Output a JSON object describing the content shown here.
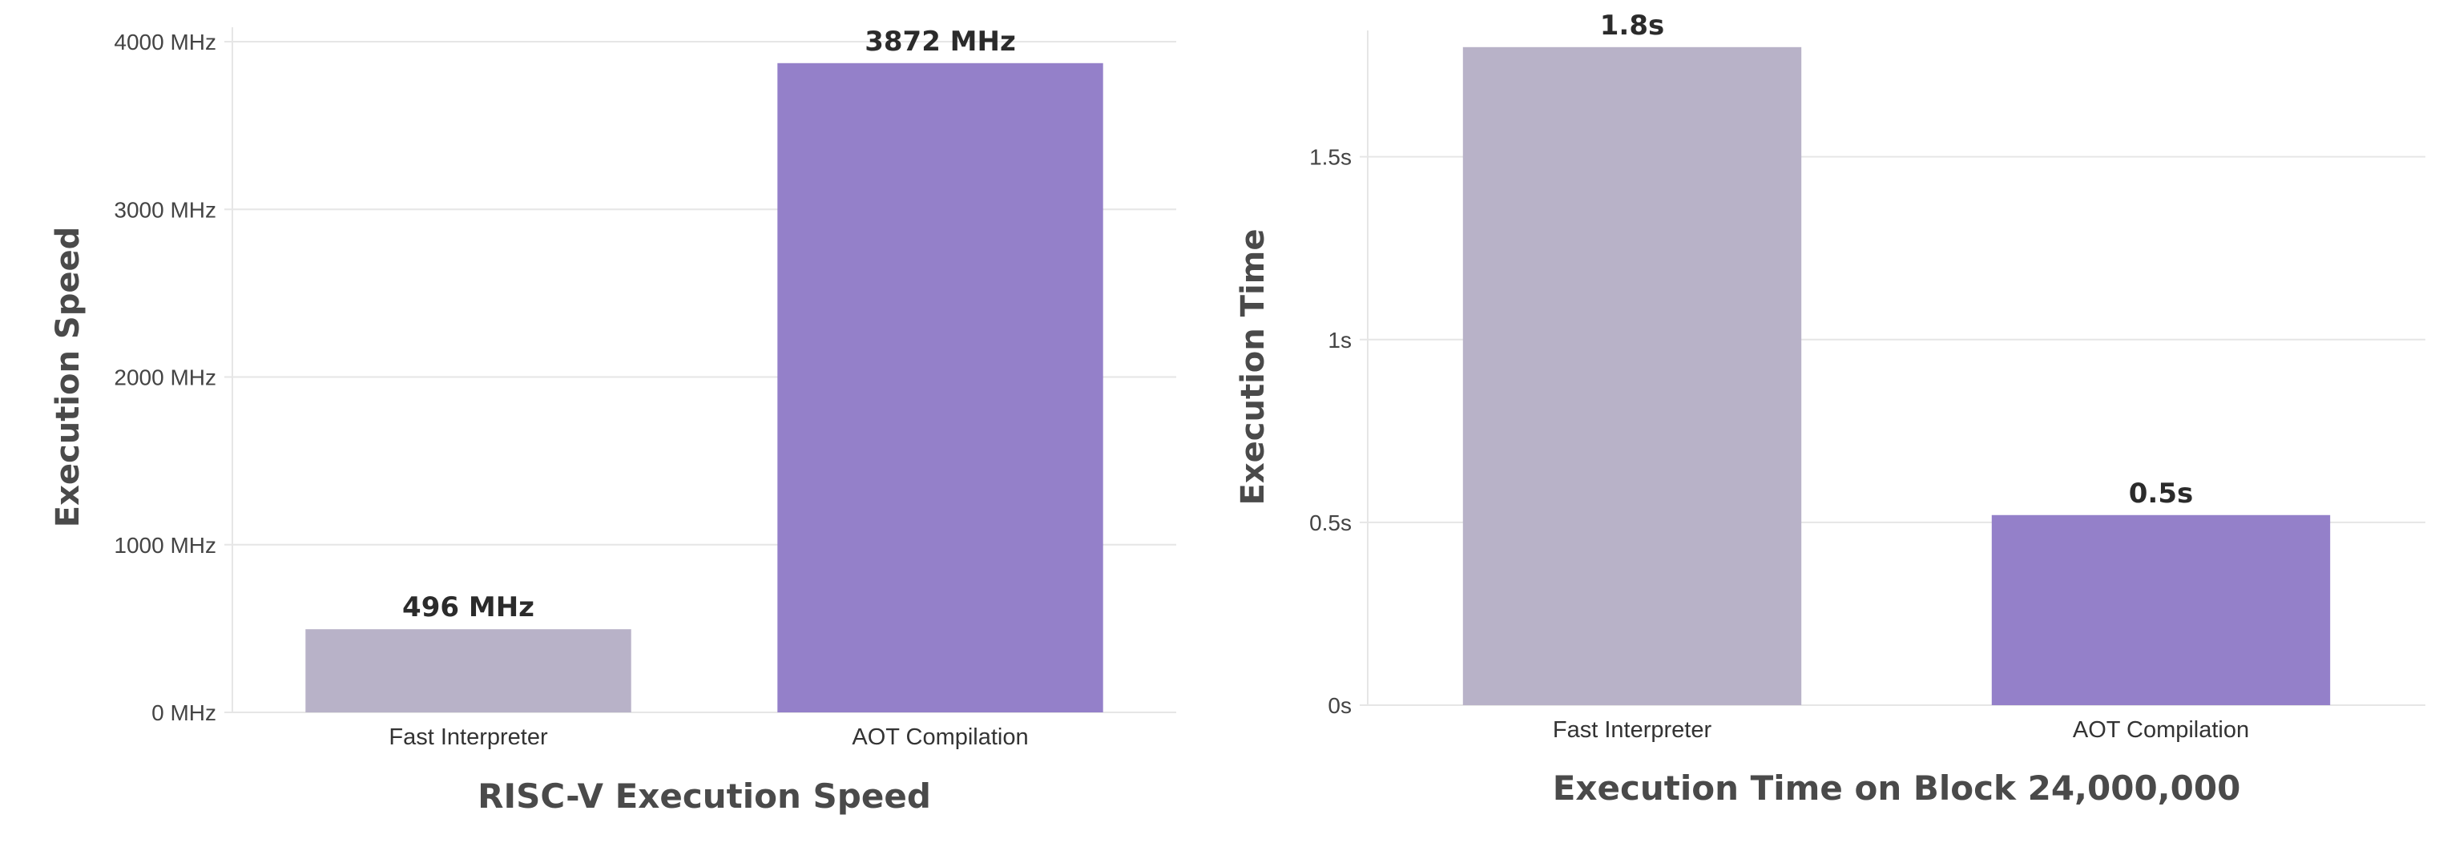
{
  "chart_data": [
    {
      "type": "bar",
      "title": "RISC-V Execution Speed",
      "ylabel": "Execution Speed",
      "xlabel": "",
      "categories": [
        "Fast Interpreter",
        "AOT Compilation"
      ],
      "values": [
        496,
        3872
      ],
      "data_labels": [
        "496 MHz",
        "3872 MHz"
      ],
      "ylim": [
        0,
        4000
      ],
      "yticks": [
        0,
        1000,
        2000,
        3000,
        4000
      ],
      "ytick_labels": [
        "0 MHz",
        "1000 MHz",
        "2000 MHz",
        "3000 MHz",
        "4000 MHz"
      ],
      "colors": [
        "#b8b2c8",
        "#9480c9"
      ],
      "grid": true,
      "legend": "none"
    },
    {
      "type": "bar",
      "title": "Execution Time on Block 24,000,000",
      "ylabel": "Execution Time",
      "xlabel": "",
      "categories": [
        "Fast Interpreter",
        "AOT Compilation"
      ],
      "values": [
        1.8,
        0.52
      ],
      "data_labels": [
        "1.8s",
        "0.5s"
      ],
      "ylim": [
        0,
        1.85
      ],
      "yticks": [
        0,
        0.5,
        1,
        1.5
      ],
      "ytick_labels": [
        "0s",
        "0.5s",
        "1s",
        "1.5s"
      ],
      "colors": [
        "#b8b2c8",
        "#9480c9"
      ],
      "grid": true,
      "legend": "none"
    }
  ]
}
